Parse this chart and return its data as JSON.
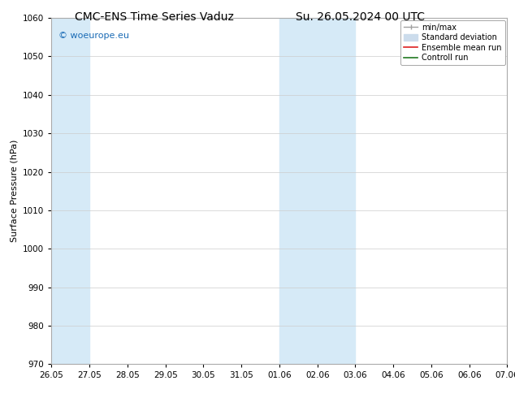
{
  "title_left": "CMC-ENS Time Series Vaduz",
  "title_right": "Su. 26.05.2024 00 UTC",
  "ylabel": "Surface Pressure (hPa)",
  "ylim": [
    970,
    1060
  ],
  "yticks": [
    970,
    980,
    990,
    1000,
    1010,
    1020,
    1030,
    1040,
    1050,
    1060
  ],
  "x_start": 0,
  "x_end": 42,
  "xtick_labels": [
    "26.05",
    "27.05",
    "28.05",
    "29.05",
    "30.05",
    "31.05",
    "01.06",
    "02.06",
    "03.06",
    "04.06",
    "05.06",
    "06.06",
    "07.06"
  ],
  "xtick_positions": [
    0,
    3.5,
    7,
    10.5,
    14,
    17.5,
    21,
    24.5,
    28,
    31.5,
    35,
    38.5,
    42
  ],
  "shaded_bands": [
    {
      "x_start": 0,
      "x_end": 3.5,
      "color": "#d6eaf7"
    },
    {
      "x_start": 21,
      "x_end": 24.5,
      "color": "#d6eaf7"
    },
    {
      "x_start": 24.5,
      "x_end": 28,
      "color": "#d6eaf7"
    }
  ],
  "watermark_text": "© woeurope.eu",
  "watermark_color": "#1a6bb5",
  "background_color": "#ffffff",
  "plot_bg_color": "#ffffff",
  "legend_labels": [
    "min/max",
    "Standard deviation",
    "Ensemble mean run",
    "Controll run"
  ],
  "legend_colors": [
    "#a0a0a0",
    "#ccdcec",
    "#dd2020",
    "#207820"
  ],
  "grid_color": "#cccccc",
  "title_fontsize": 10,
  "axis_label_fontsize": 8,
  "tick_label_fontsize": 7.5,
  "watermark_fontsize": 8,
  "legend_fontsize": 7
}
